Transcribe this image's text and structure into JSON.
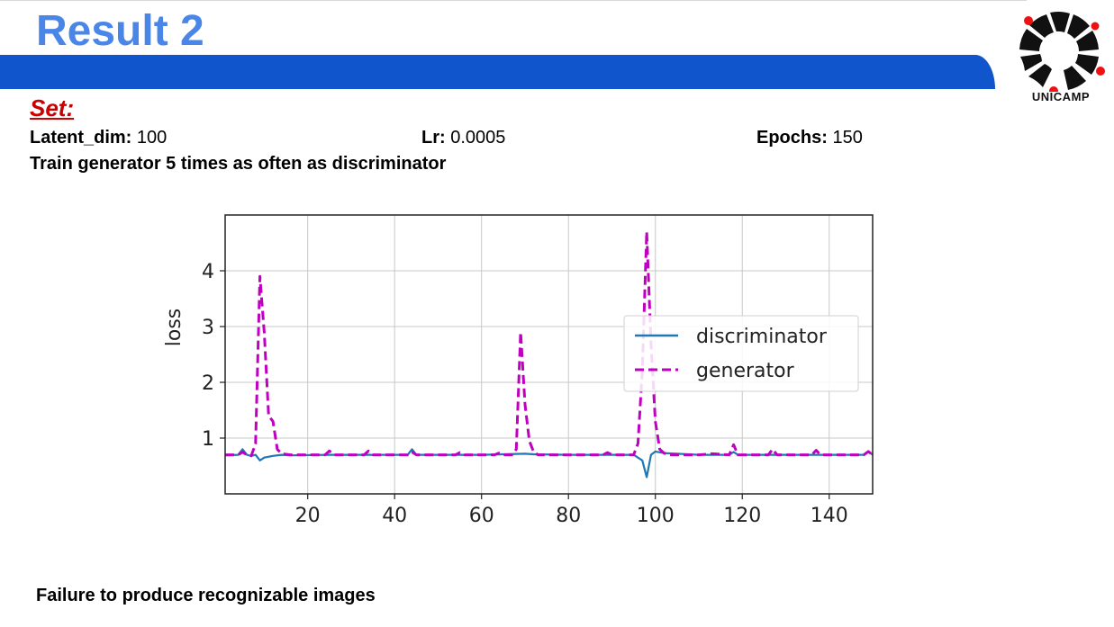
{
  "slide": {
    "title": "Result 2",
    "logo_text": "UNICAMP",
    "set_label": "Set:",
    "params": [
      {
        "label": "Latent_dim:",
        "value": "100"
      },
      {
        "label": "Lr:",
        "value": "0.0005"
      },
      {
        "label": "Epochs:",
        "value": "150"
      }
    ],
    "note": "Train generator 5 times as often as discriminator",
    "footer": "Failure to produce recognizable images",
    "colors": {
      "title": "#4a86e8",
      "banner": "#1155cc",
      "set_label": "#cc0000"
    }
  },
  "chart_data": {
    "type": "line",
    "title": "",
    "xlabel": "",
    "ylabel": "loss",
    "xlim": [
      1,
      150
    ],
    "ylim": [
      0,
      5
    ],
    "xticks": [
      20,
      40,
      60,
      80,
      100,
      120,
      140
    ],
    "yticks": [
      1,
      2,
      3,
      4
    ],
    "grid": true,
    "legend": "center-right",
    "series": [
      {
        "name": "discriminator",
        "color": "#1f77b4",
        "style": "solid",
        "points": [
          [
            1,
            0.69
          ],
          [
            4,
            0.7
          ],
          [
            5,
            0.8
          ],
          [
            6,
            0.7
          ],
          [
            7,
            0.68
          ],
          [
            8,
            0.7
          ],
          [
            9,
            0.6
          ],
          [
            10,
            0.65
          ],
          [
            12,
            0.68
          ],
          [
            14,
            0.7
          ],
          [
            16,
            0.69
          ],
          [
            25,
            0.7
          ],
          [
            34,
            0.7
          ],
          [
            43,
            0.7
          ],
          [
            44,
            0.8
          ],
          [
            45,
            0.7
          ],
          [
            60,
            0.7
          ],
          [
            70,
            0.72
          ],
          [
            72,
            0.71
          ],
          [
            80,
            0.7
          ],
          [
            95,
            0.7
          ],
          [
            97,
            0.6
          ],
          [
            98,
            0.3
          ],
          [
            99,
            0.7
          ],
          [
            100,
            0.76
          ],
          [
            102,
            0.73
          ],
          [
            105,
            0.72
          ],
          [
            110,
            0.7
          ],
          [
            117,
            0.7
          ],
          [
            118,
            0.75
          ],
          [
            119,
            0.7
          ],
          [
            127,
            0.7
          ],
          [
            137,
            0.7
          ],
          [
            148,
            0.7
          ],
          [
            149,
            0.76
          ],
          [
            150,
            0.7
          ]
        ]
      },
      {
        "name": "generator",
        "color": "#bf00bf",
        "style": "dashed",
        "points": [
          [
            1,
            0.7
          ],
          [
            4,
            0.7
          ],
          [
            5,
            0.75
          ],
          [
            6,
            0.7
          ],
          [
            7,
            0.68
          ],
          [
            8,
            0.9
          ],
          [
            9,
            3.9
          ],
          [
            10,
            2.9
          ],
          [
            11,
            1.4
          ],
          [
            12,
            1.3
          ],
          [
            13,
            0.8
          ],
          [
            14,
            0.72
          ],
          [
            16,
            0.7
          ],
          [
            24,
            0.7
          ],
          [
            25,
            0.77
          ],
          [
            26,
            0.7
          ],
          [
            33,
            0.7
          ],
          [
            34,
            0.77
          ],
          [
            35,
            0.7
          ],
          [
            43,
            0.7
          ],
          [
            44,
            0.75
          ],
          [
            45,
            0.7
          ],
          [
            54,
            0.7
          ],
          [
            55,
            0.74
          ],
          [
            56,
            0.7
          ],
          [
            63,
            0.7
          ],
          [
            64,
            0.73
          ],
          [
            65,
            0.7
          ],
          [
            67,
            0.7
          ],
          [
            68,
            0.8
          ],
          [
            69,
            2.9
          ],
          [
            70,
            1.6
          ],
          [
            71,
            0.95
          ],
          [
            72,
            0.75
          ],
          [
            73,
            0.7
          ],
          [
            80,
            0.7
          ],
          [
            88,
            0.7
          ],
          [
            89,
            0.74
          ],
          [
            90,
            0.7
          ],
          [
            95,
            0.7
          ],
          [
            96,
            0.9
          ],
          [
            97,
            2.2
          ],
          [
            98,
            4.7
          ],
          [
            99,
            2.7
          ],
          [
            100,
            1.3
          ],
          [
            101,
            0.8
          ],
          [
            102,
            0.73
          ],
          [
            103,
            0.7
          ],
          [
            110,
            0.7
          ],
          [
            113,
            0.72
          ],
          [
            117,
            0.7
          ],
          [
            118,
            0.88
          ],
          [
            119,
            0.7
          ],
          [
            126,
            0.7
          ],
          [
            127,
            0.8
          ],
          [
            128,
            0.7
          ],
          [
            136,
            0.7
          ],
          [
            137,
            0.78
          ],
          [
            138,
            0.7
          ],
          [
            145,
            0.7
          ],
          [
            148,
            0.7
          ],
          [
            149,
            0.76
          ],
          [
            150,
            0.7
          ]
        ]
      }
    ]
  }
}
